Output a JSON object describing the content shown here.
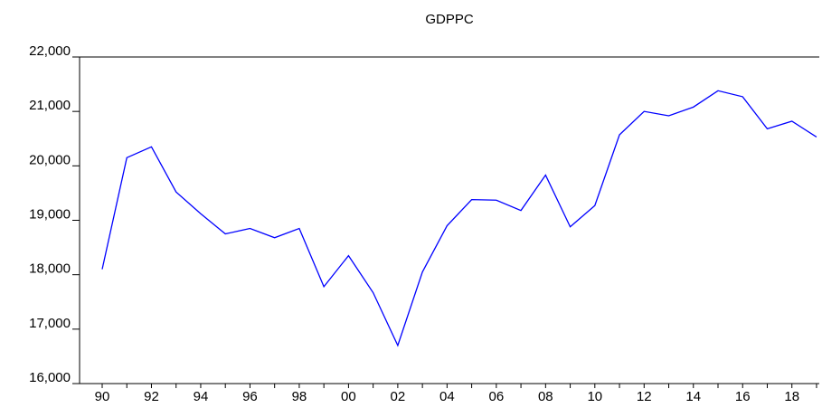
{
  "chart_data": {
    "type": "line",
    "title": "GDPPC",
    "categories": [
      "90",
      null,
      "92",
      null,
      "94",
      null,
      "96",
      null,
      "98",
      null,
      "00",
      null,
      "02",
      null,
      "04",
      null,
      "06",
      null,
      "08",
      null,
      "10",
      null,
      "12",
      null,
      "14",
      null,
      "16",
      null,
      "18",
      null
    ],
    "series": [
      {
        "name": "GDPPC",
        "color": "#0000ff",
        "values": [
          18100,
          20150,
          20350,
          19520,
          19120,
          18750,
          18850,
          18680,
          18850,
          17780,
          18350,
          17670,
          16700,
          18050,
          18900,
          19380,
          19370,
          19180,
          19830,
          18880,
          19270,
          20570,
          21000,
          20920,
          21080,
          21380,
          21270,
          20680,
          20820,
          20530
        ]
      }
    ],
    "ylim": [
      16000,
      22000
    ],
    "yticks": [
      {
        "value": 16000,
        "label": "16,000"
      },
      {
        "value": 17000,
        "label": "17,000"
      },
      {
        "value": 18000,
        "label": "18,000"
      },
      {
        "value": 19000,
        "label": "19,000"
      },
      {
        "value": 20000,
        "label": "20,000"
      },
      {
        "value": 21000,
        "label": "21,000"
      },
      {
        "value": 22000,
        "label": "22,000"
      }
    ]
  }
}
